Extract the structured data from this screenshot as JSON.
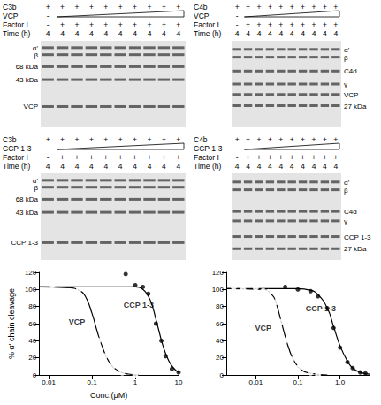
{
  "gels": [
    {
      "rows": [
        {
          "label": "C3b",
          "marks": [
            "+",
            "+",
            "+",
            "+",
            "+",
            "+",
            "+",
            "+",
            "+",
            "+"
          ]
        },
        {
          "label": "VCP",
          "marks": [
            "-"
          ],
          "wedge": true
        },
        {
          "label": "Factor I",
          "marks": [
            "-",
            "+",
            "+",
            "+",
            "+",
            "+",
            "+",
            "+",
            "+",
            "+"
          ]
        },
        {
          "label": "Time (h)",
          "marks": [
            "4",
            "4",
            "4",
            "4",
            "4",
            "4",
            "4",
            "4",
            "4",
            "4"
          ]
        }
      ],
      "bands": [
        "α'",
        "β",
        "68 kDa",
        "43 kDa",
        "VCP"
      ],
      "band_side": "left"
    },
    {
      "rows": [
        {
          "label": "C4b",
          "marks": [
            "+",
            "+",
            "+",
            "+",
            "+",
            "+",
            "+",
            "+",
            "+",
            "+"
          ]
        },
        {
          "label": "VCP",
          "marks": [
            "-"
          ],
          "wedge": true
        },
        {
          "label": "Factor I",
          "marks": [
            "-",
            "+",
            "+",
            "+",
            "+",
            "+",
            "+",
            "+",
            "+",
            "+"
          ]
        },
        {
          "label": "Time (h)",
          "marks": [
            "4",
            "4",
            "4",
            "4",
            "4",
            "4",
            "4",
            "4",
            "4",
            "4"
          ]
        }
      ],
      "bands": [
        "α'",
        "β",
        "C4d",
        "γ",
        "VCP",
        "27 kDa"
      ],
      "band_side": "right"
    },
    {
      "rows": [
        {
          "label": "C3b",
          "marks": [
            "+",
            "+",
            "+",
            "+",
            "+",
            "+",
            "+",
            "+",
            "+",
            "+"
          ]
        },
        {
          "label": "CCP 1-3",
          "marks": [
            "-"
          ],
          "wedge": true
        },
        {
          "label": "Factor I",
          "marks": [
            "-",
            "+",
            "+",
            "+",
            "+",
            "+",
            "+",
            "+",
            "+",
            "+"
          ]
        },
        {
          "label": "Time (h)",
          "marks": [
            "4",
            "4",
            "4",
            "4",
            "4",
            "4",
            "4",
            "4",
            "4",
            "4"
          ]
        }
      ],
      "bands": [
        "α'",
        "β",
        "68 kDa",
        "43 kDa",
        "CCP 1-3"
      ],
      "band_side": "left"
    },
    {
      "rows": [
        {
          "label": "C4b",
          "marks": [
            "+",
            "+",
            "+",
            "+",
            "+",
            "+",
            "+",
            "+",
            "+",
            "+"
          ]
        },
        {
          "label": "CCP 1-3",
          "marks": [
            "-"
          ],
          "wedge": true
        },
        {
          "label": "Factor I",
          "marks": [
            "-",
            "+",
            "+",
            "+",
            "+",
            "+",
            "+",
            "+",
            "+",
            "+"
          ]
        },
        {
          "label": "Time (h)",
          "marks": [
            "4",
            "4",
            "4",
            "4",
            "4",
            "4",
            "4",
            "4",
            "4",
            "4"
          ]
        }
      ],
      "bands": [
        "α'",
        "β",
        "C4d",
        "γ",
        "CCP 1-3",
        "27 kDa"
      ],
      "band_side": "right"
    }
  ],
  "chart_data": [
    {
      "type": "scatter",
      "log": "x",
      "grid": false,
      "x_label": "Conc.(μM)",
      "y_label": "% α' chain cleavage",
      "xlim": [
        0.006,
        10
      ],
      "xticks": [
        0.01,
        0.1,
        1,
        10
      ],
      "ylim": [
        0,
        120
      ],
      "yticks": [
        0,
        20,
        40,
        60,
        80,
        100,
        120
      ],
      "series": [
        {
          "name": "VCP",
          "marker": "open circle",
          "color": "#000000",
          "x": [
            0.012,
            0.02,
            0.03,
            0.05,
            0.07,
            0.1,
            0.14,
            0.2,
            0.3,
            0.5,
            1
          ],
          "values": [
            105,
            108,
            98,
            100,
            75,
            55,
            40,
            22,
            10,
            3,
            0
          ],
          "curve": {
            "x": [
              0.006,
              0.03,
              0.05,
              0.07,
              0.1,
              0.13,
              0.17,
              0.25,
              0.4,
              0.7,
              1.2
            ],
            "values": [
              103,
              102,
              99,
              92,
              72,
              52,
              34,
              15,
              5,
              1,
              0
            ]
          }
        },
        {
          "name": "CCP 1-3",
          "marker": "filled circle",
          "color": "#000000",
          "x": [
            0.6,
            1,
            1.5,
            2,
            3,
            4,
            5,
            7,
            10
          ],
          "values": [
            118,
            105,
            103,
            95,
            60,
            40,
            22,
            7,
            3
          ],
          "curve": {
            "x": [
              0.006,
              1,
              1.5,
              2,
              2.5,
              3,
              3.5,
              4.5,
              6,
              8,
              10
            ],
            "values": [
              103,
              103,
              100,
              92,
              80,
              65,
              52,
              32,
              16,
              7,
              3
            ]
          }
        }
      ],
      "annotations": [
        {
          "text": "VCP",
          "x": 0.045,
          "y": 62
        },
        {
          "text": "CCP 1-3",
          "x": 1.2,
          "y": 82
        }
      ]
    },
    {
      "type": "scatter",
      "log": "x",
      "grid": false,
      "xlim": [
        0.002,
        5
      ],
      "xticks": [
        0.01,
        0.1,
        {
          "value": 1,
          "label": "1.0"
        }
      ],
      "ylim": [
        0,
        120
      ],
      "yticks": [
        0,
        20,
        40,
        60,
        80,
        100,
        120
      ],
      "series": [
        {
          "name": "VCP",
          "marker": "open circle",
          "color": "#000000",
          "x": [
            0.003,
            0.005,
            0.01,
            0.015,
            0.02,
            0.03,
            0.04,
            0.05,
            0.07,
            0.1,
            0.2,
            0.3
          ],
          "values": [
            103,
            100,
            102,
            98,
            97,
            85,
            62,
            40,
            18,
            8,
            3,
            0
          ],
          "curve": {
            "x": [
              0.002,
              0.015,
              0.025,
              0.03,
              0.04,
              0.05,
              0.06,
              0.08,
              0.12,
              0.2,
              0.5
            ],
            "values": [
              101,
              100,
              93,
              85,
              63,
              45,
              32,
              17,
              6,
              2,
              0
            ]
          }
        },
        {
          "name": "CCP 1-3",
          "marker": "filled circle",
          "color": "#000000",
          "x": [
            0.05,
            0.1,
            0.2,
            0.3,
            0.5,
            0.7,
            1,
            1.5,
            2,
            3,
            4
          ],
          "values": [
            103,
            100,
            98,
            92,
            78,
            55,
            32,
            15,
            8,
            3,
            2
          ],
          "curve": {
            "x": [
              0.002,
              0.1,
              0.2,
              0.3,
              0.5,
              0.7,
              1,
              1.5,
              2,
              3,
              5
            ],
            "values": [
              101,
              101,
              99,
              94,
              78,
              57,
              34,
              16,
              8,
              3,
              1
            ]
          }
        }
      ],
      "annotations": [
        {
          "text": "VCP",
          "x": 0.015,
          "y": 55
        },
        {
          "text": "CCP 1-3",
          "x": 0.35,
          "y": 78
        }
      ]
    }
  ]
}
